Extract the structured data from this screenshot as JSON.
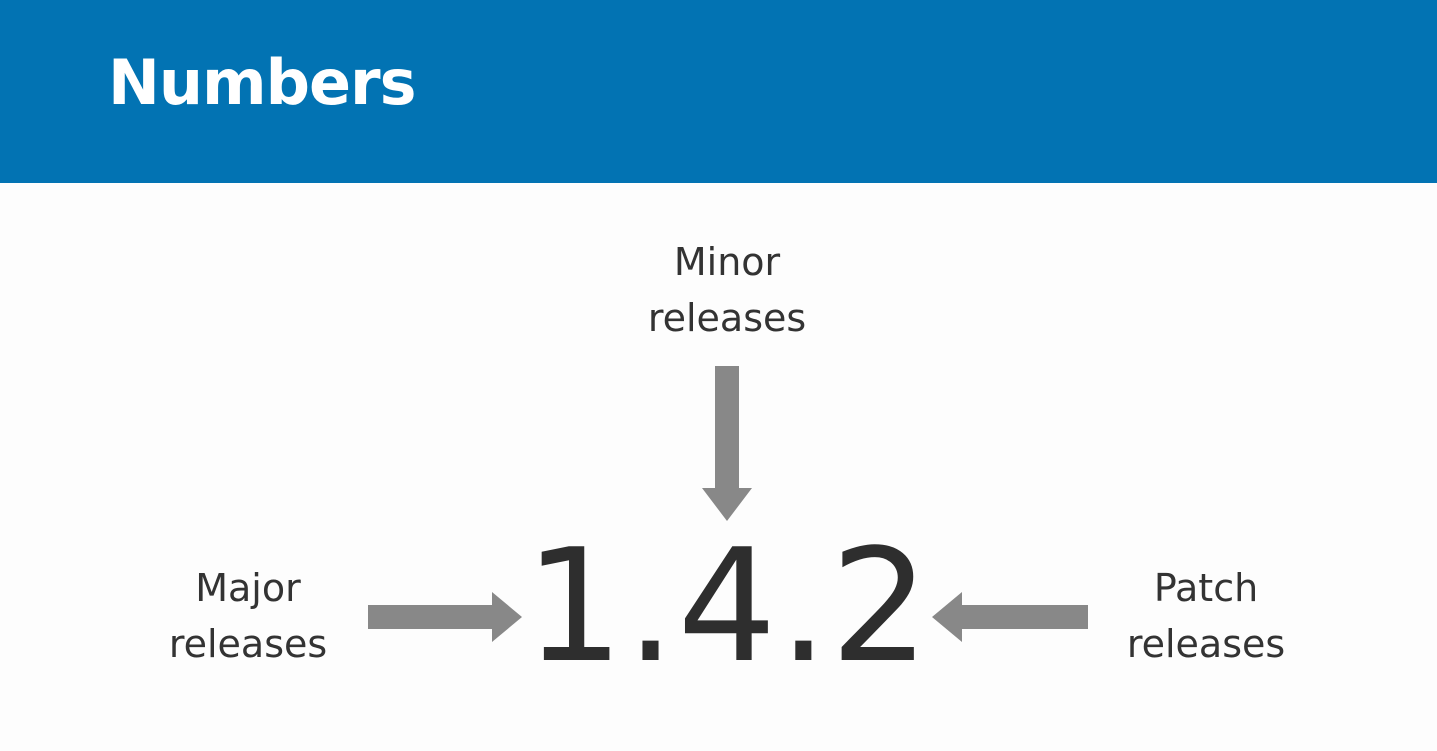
{
  "header": {
    "title": "Numbers",
    "background_color": "#0273b3"
  },
  "diagram": {
    "version": "1.4.2",
    "arrow_color": "#888888",
    "labels": {
      "minor": {
        "line1": "Minor",
        "line2": "releases"
      },
      "major": {
        "line1": "Major",
        "line2": "releases"
      },
      "patch": {
        "line1": "Patch",
        "line2": "releases"
      }
    }
  }
}
